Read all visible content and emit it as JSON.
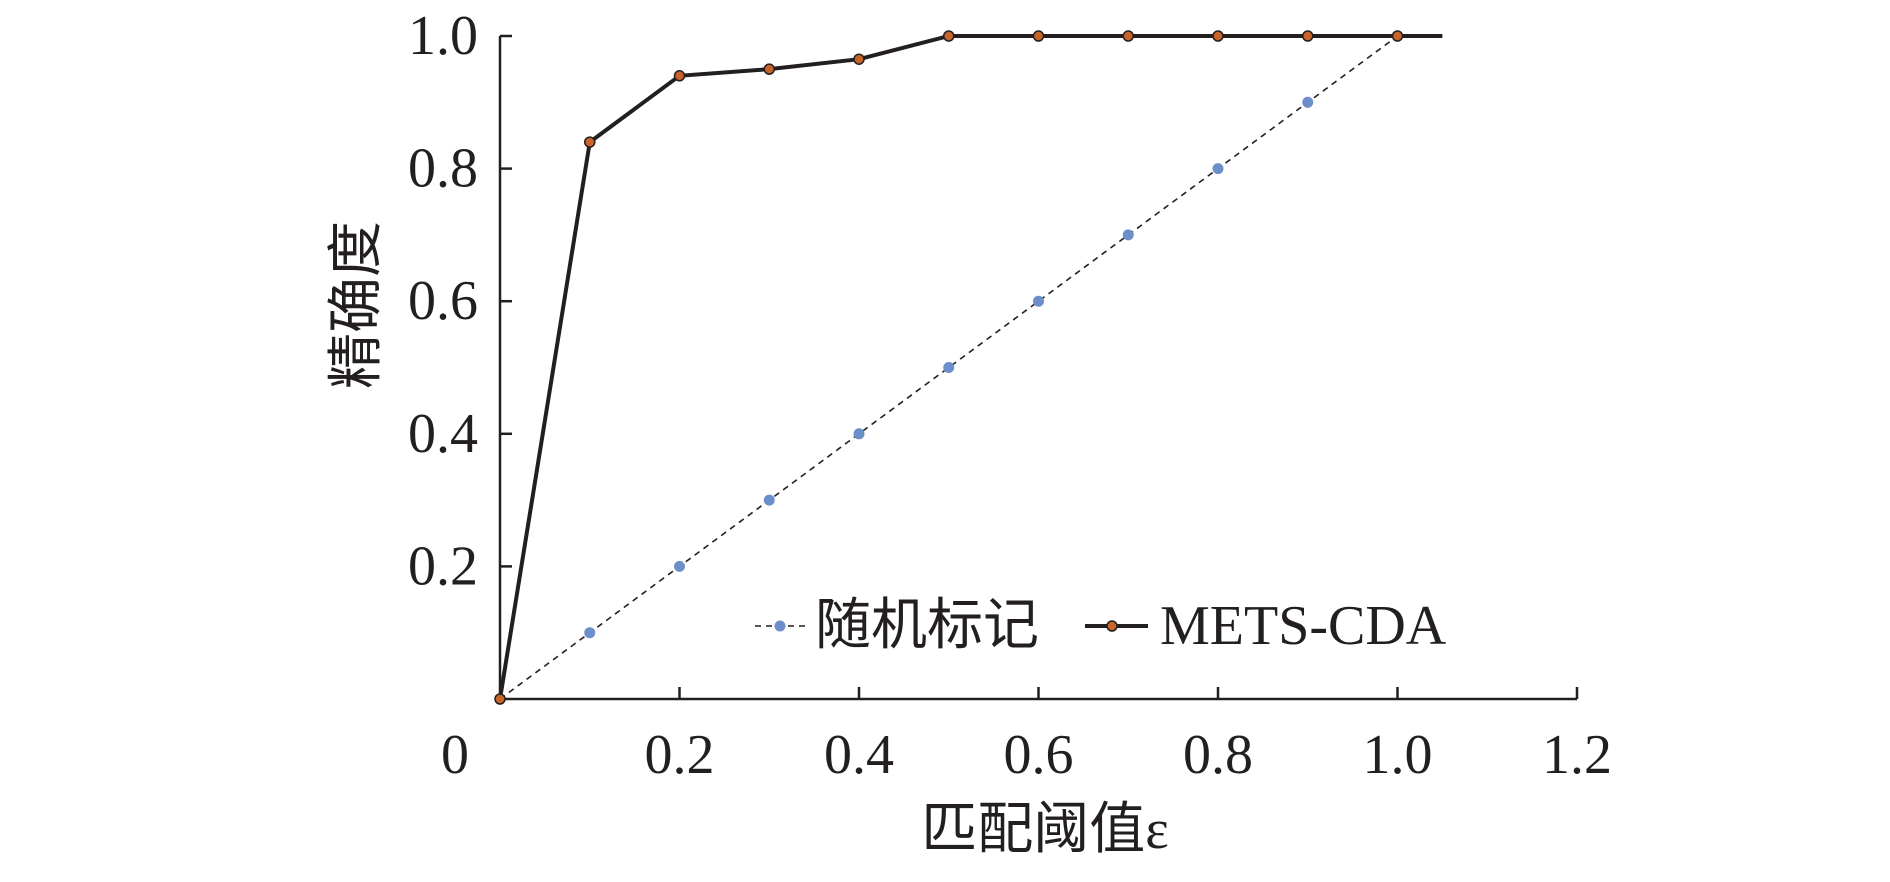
{
  "chart_data": {
    "type": "line",
    "xlabel": "匹配阈值ε",
    "ylabel": "精确度",
    "xlim": [
      0,
      1.2
    ],
    "ylim": [
      0,
      1.0
    ],
    "x_ticks": [
      "0",
      "0.2",
      "0.4",
      "0.6",
      "0.8",
      "1.0",
      "1.2"
    ],
    "y_ticks": [
      "0.2",
      "0.4",
      "0.6",
      "0.8",
      "1.0"
    ],
    "grid": false,
    "legend_position": "bottom-right",
    "series": [
      {
        "name": "随机标记",
        "style": "dashed",
        "line_color": "#231f20",
        "marker_color": "#6d8fc9",
        "x": [
          0,
          0.1,
          0.2,
          0.3,
          0.4,
          0.5,
          0.6,
          0.7,
          0.8,
          0.9,
          1.0
        ],
        "y": [
          0,
          0.1,
          0.2,
          0.3,
          0.4,
          0.5,
          0.6,
          0.7,
          0.8,
          0.9,
          1.0
        ]
      },
      {
        "name": "METS-CDA",
        "style": "solid",
        "line_color": "#231f20",
        "marker_color": "#c8642a",
        "x": [
          0,
          0.1,
          0.2,
          0.3,
          0.4,
          0.5,
          0.6,
          0.7,
          0.8,
          0.9,
          1.0,
          1.05
        ],
        "y": [
          0,
          0.84,
          0.94,
          0.95,
          0.965,
          1.0,
          1.0,
          1.0,
          1.0,
          1.0,
          1.0,
          1.0
        ],
        "markers_at": [
          0,
          0.1,
          0.2,
          0.3,
          0.4,
          0.5,
          0.6,
          0.7,
          0.8,
          0.9,
          1.0
        ]
      }
    ]
  }
}
